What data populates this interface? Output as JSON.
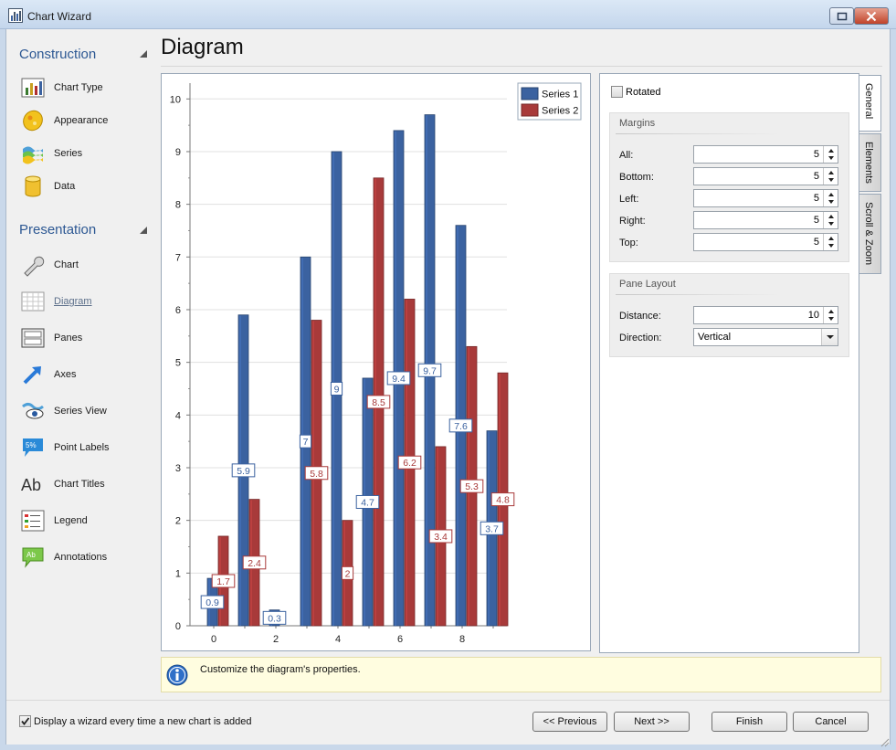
{
  "window": {
    "title": "Chart Wizard"
  },
  "nav": {
    "groups": [
      {
        "label": "Construction",
        "items": [
          "Chart Type",
          "Appearance",
          "Series",
          "Data"
        ]
      },
      {
        "label": "Presentation",
        "items": [
          "Chart",
          "Diagram",
          "Panes",
          "Axes",
          "Series View",
          "Point Labels",
          "Chart Titles",
          "Legend",
          "Annotations"
        ]
      }
    ],
    "active_item": "Diagram"
  },
  "page": {
    "title": "Diagram"
  },
  "chart_data": {
    "type": "bar",
    "x": [
      0,
      1,
      2,
      3,
      4,
      5,
      6,
      7,
      8,
      9
    ],
    "x_tick_labels": [
      "0",
      "2",
      "4",
      "6",
      "8"
    ],
    "y_tick_labels": [
      "0",
      "1",
      "2",
      "3",
      "4",
      "5",
      "6",
      "7",
      "8",
      "9",
      "10"
    ],
    "ylim": [
      0,
      10.3
    ],
    "grid": true,
    "legend_position": "top-right",
    "series": [
      {
        "name": "Series 1",
        "color": "#3b62a0",
        "values": [
          0.9,
          5.9,
          0.3,
          7,
          9,
          4.7,
          9.4,
          9.7,
          7.6,
          3.7
        ],
        "labels": [
          "0.9",
          "5.9",
          "0.3",
          "7",
          "9",
          "4.7",
          "9.4",
          "9.7",
          "7.6",
          "3.7"
        ]
      },
      {
        "name": "Series 2",
        "color": "#a83a3a",
        "values": [
          1.7,
          2.4,
          null,
          5.8,
          2,
          8.5,
          6.2,
          3.4,
          5.3,
          4.8
        ],
        "labels": [
          "1.7",
          "2.4",
          "",
          "5.8",
          "2",
          "8.5",
          "6.2",
          "3.4",
          "5.3",
          "4.8"
        ]
      }
    ]
  },
  "props": {
    "rotated_label": "Rotated",
    "margins": {
      "title": "Margins",
      "fields": [
        {
          "label": "All:",
          "value": "5"
        },
        {
          "label": "Bottom:",
          "value": "5"
        },
        {
          "label": "Left:",
          "value": "5"
        },
        {
          "label": "Right:",
          "value": "5"
        },
        {
          "label": "Top:",
          "value": "5"
        }
      ]
    },
    "pane_layout": {
      "title": "Pane Layout",
      "distance_label": "Distance:",
      "distance_value": "10",
      "direction_label": "Direction:",
      "direction_value": "Vertical"
    }
  },
  "tabs": [
    "General",
    "Elements",
    "Scroll & Zoom"
  ],
  "hint": {
    "text": "Customize the diagram's properties."
  },
  "footer": {
    "wizard_checkbox_label": "Display a wizard every time a new chart is added",
    "prev_button": "<< Previous",
    "next_button": "Next >>",
    "finish_button": "Finish",
    "cancel_button": "Cancel"
  }
}
